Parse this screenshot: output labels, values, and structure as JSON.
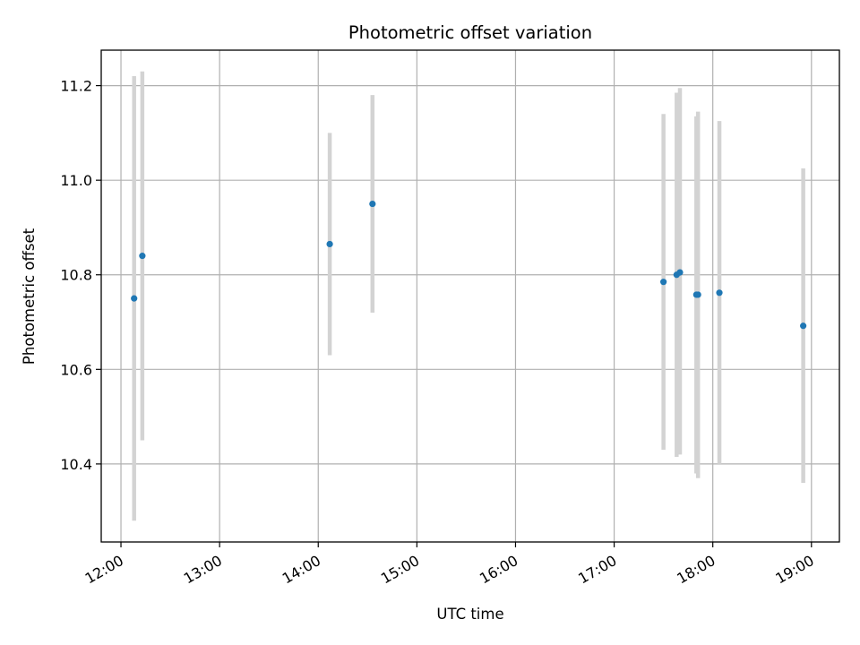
{
  "chart_data": {
    "type": "scatter",
    "title": "Photometric offset variation",
    "xlabel": "UTC time",
    "ylabel": "Photometric offset",
    "x_tick_labels": [
      "12:00",
      "13:00",
      "14:00",
      "15:00",
      "16:00",
      "17:00",
      "18:00",
      "19:00"
    ],
    "x_tick_hours": [
      12,
      13,
      14,
      15,
      16,
      17,
      18,
      19
    ],
    "y_ticks": [
      10.4,
      10.6,
      10.8,
      11.0,
      11.2
    ],
    "y_tick_labels": [
      "10.4",
      "10.6",
      "10.8",
      "11.0",
      "11.2"
    ],
    "xlim": [
      "11:48",
      "19:17"
    ],
    "ylim": [
      10.235,
      11.275
    ],
    "grid": true,
    "points": [
      {
        "x": "12:08",
        "y": 10.75,
        "y_low": 10.28,
        "y_high": 11.22
      },
      {
        "x": "12:13",
        "y": 10.84,
        "y_low": 10.45,
        "y_high": 11.23
      },
      {
        "x": "14:07",
        "y": 10.865,
        "y_low": 10.63,
        "y_high": 11.1
      },
      {
        "x": "14:33",
        "y": 10.95,
        "y_low": 10.72,
        "y_high": 11.18
      },
      {
        "x": "17:30",
        "y": 10.785,
        "y_low": 10.43,
        "y_high": 11.14
      },
      {
        "x": "17:38",
        "y": 10.8,
        "y_low": 10.415,
        "y_high": 11.185
      },
      {
        "x": "17:40",
        "y": 10.805,
        "y_low": 10.42,
        "y_high": 11.195
      },
      {
        "x": "17:50",
        "y": 10.758,
        "y_low": 10.38,
        "y_high": 11.135
      },
      {
        "x": "17:51",
        "y": 10.758,
        "y_low": 10.37,
        "y_high": 11.145
      },
      {
        "x": "18:04",
        "y": 10.762,
        "y_low": 10.4,
        "y_high": 11.125
      },
      {
        "x": "18:55",
        "y": 10.692,
        "y_low": 10.36,
        "y_high": 11.025
      }
    ],
    "colors": {
      "points": "#1f77b4",
      "error_bars": "#d3d3d3",
      "grid": "#b0b0b0",
      "axes": "#000000"
    }
  }
}
